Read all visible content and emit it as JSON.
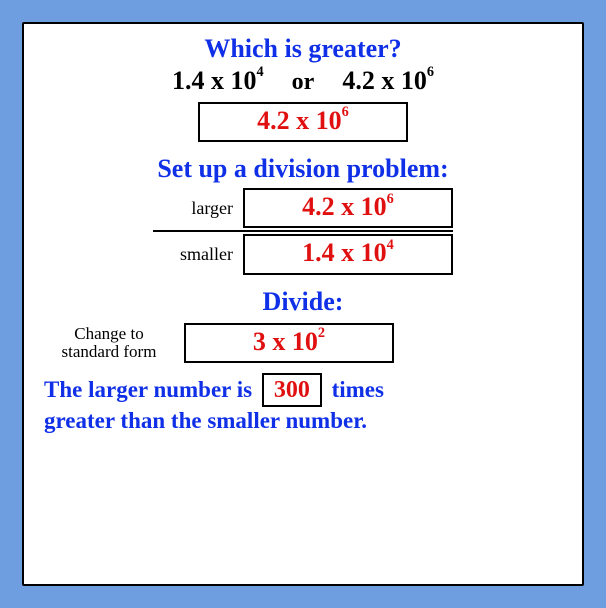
{
  "q_heading": "Which is greater?",
  "compare": {
    "left_coef": "1.4 x 10",
    "left_exp": "4",
    "or": "or",
    "right_coef": "4.2 x 10",
    "right_exp": "6"
  },
  "answer1": {
    "coef": "4.2 x 10",
    "exp": "6"
  },
  "div_heading": "Set up a division problem:",
  "larger_label": "larger",
  "smaller_label": "smaller",
  "numerator": {
    "coef": "4.2 x 10",
    "exp": "6"
  },
  "denominator": {
    "coef": "1.4 x 10",
    "exp": "4"
  },
  "divide_heading": "Divide:",
  "std_note_l1": "Change to",
  "std_note_l2": "standard form",
  "quotient": {
    "coef": "3 x 10",
    "exp": "2"
  },
  "conclusion_pre": "The larger number is",
  "conclusion_val": "300",
  "conclusion_post": "times",
  "conclusion_l2": "greater than the smaller number.",
  "colors": {
    "page_bg": "#6f9ee0",
    "card_bg": "#ffffff",
    "border": "#000000",
    "heading": "#1030e8",
    "answer": "#e01010",
    "body": "#000000"
  }
}
